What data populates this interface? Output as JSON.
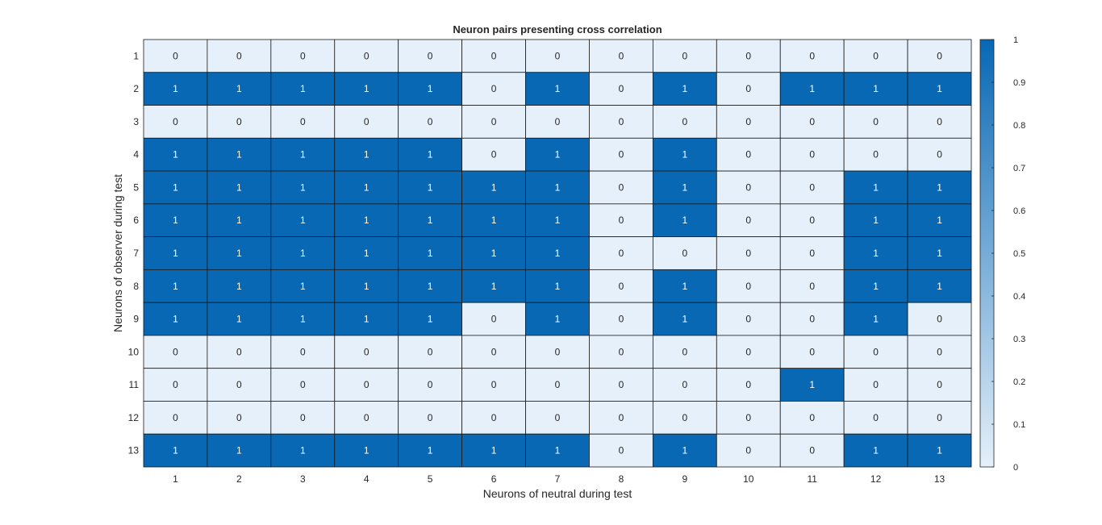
{
  "chart_data": {
    "type": "heatmap",
    "title": "Neuron pairs presenting cross correlation",
    "xlabel": "Neurons of neutral during test",
    "ylabel": "Neurons of observer during test",
    "x_categories": [
      "1",
      "2",
      "3",
      "4",
      "5",
      "6",
      "7",
      "8",
      "9",
      "10",
      "11",
      "12",
      "13"
    ],
    "y_categories": [
      "1",
      "2",
      "3",
      "4",
      "5",
      "6",
      "7",
      "8",
      "9",
      "10",
      "11",
      "12",
      "13"
    ],
    "values": [
      [
        0,
        0,
        0,
        0,
        0,
        0,
        0,
        0,
        0,
        0,
        0,
        0,
        0
      ],
      [
        1,
        1,
        1,
        1,
        1,
        0,
        1,
        0,
        1,
        0,
        1,
        1,
        1
      ],
      [
        0,
        0,
        0,
        0,
        0,
        0,
        0,
        0,
        0,
        0,
        0,
        0,
        0
      ],
      [
        1,
        1,
        1,
        1,
        1,
        0,
        1,
        0,
        1,
        0,
        0,
        0,
        0
      ],
      [
        1,
        1,
        1,
        1,
        1,
        1,
        1,
        0,
        1,
        0,
        0,
        1,
        1
      ],
      [
        1,
        1,
        1,
        1,
        1,
        1,
        1,
        0,
        1,
        0,
        0,
        1,
        1
      ],
      [
        1,
        1,
        1,
        1,
        1,
        1,
        1,
        0,
        0,
        0,
        0,
        1,
        1
      ],
      [
        1,
        1,
        1,
        1,
        1,
        1,
        1,
        0,
        1,
        0,
        0,
        1,
        1
      ],
      [
        1,
        1,
        1,
        1,
        1,
        0,
        1,
        0,
        1,
        0,
        0,
        1,
        0
      ],
      [
        0,
        0,
        0,
        0,
        0,
        0,
        0,
        0,
        0,
        0,
        0,
        0,
        0
      ],
      [
        0,
        0,
        0,
        0,
        0,
        0,
        0,
        0,
        0,
        0,
        1,
        0,
        0
      ],
      [
        0,
        0,
        0,
        0,
        0,
        0,
        0,
        0,
        0,
        0,
        0,
        0,
        0
      ],
      [
        1,
        1,
        1,
        1,
        1,
        1,
        1,
        0,
        1,
        0,
        0,
        1,
        1
      ]
    ],
    "colorbar": {
      "limits": [
        0,
        1
      ],
      "ticks": [
        0,
        0.1,
        0.2,
        0.3,
        0.4,
        0.5,
        0.6,
        0.7,
        0.8,
        0.9,
        1
      ],
      "tick_labels": [
        "0",
        "0.1",
        "0.2",
        "0.3",
        "0.4",
        "0.5",
        "0.6",
        "0.7",
        "0.8",
        "0.9",
        "1"
      ],
      "color_low": "#e5f0fa",
      "color_high": "#0868b4"
    },
    "grid": true,
    "legend": "colorbar-right"
  }
}
